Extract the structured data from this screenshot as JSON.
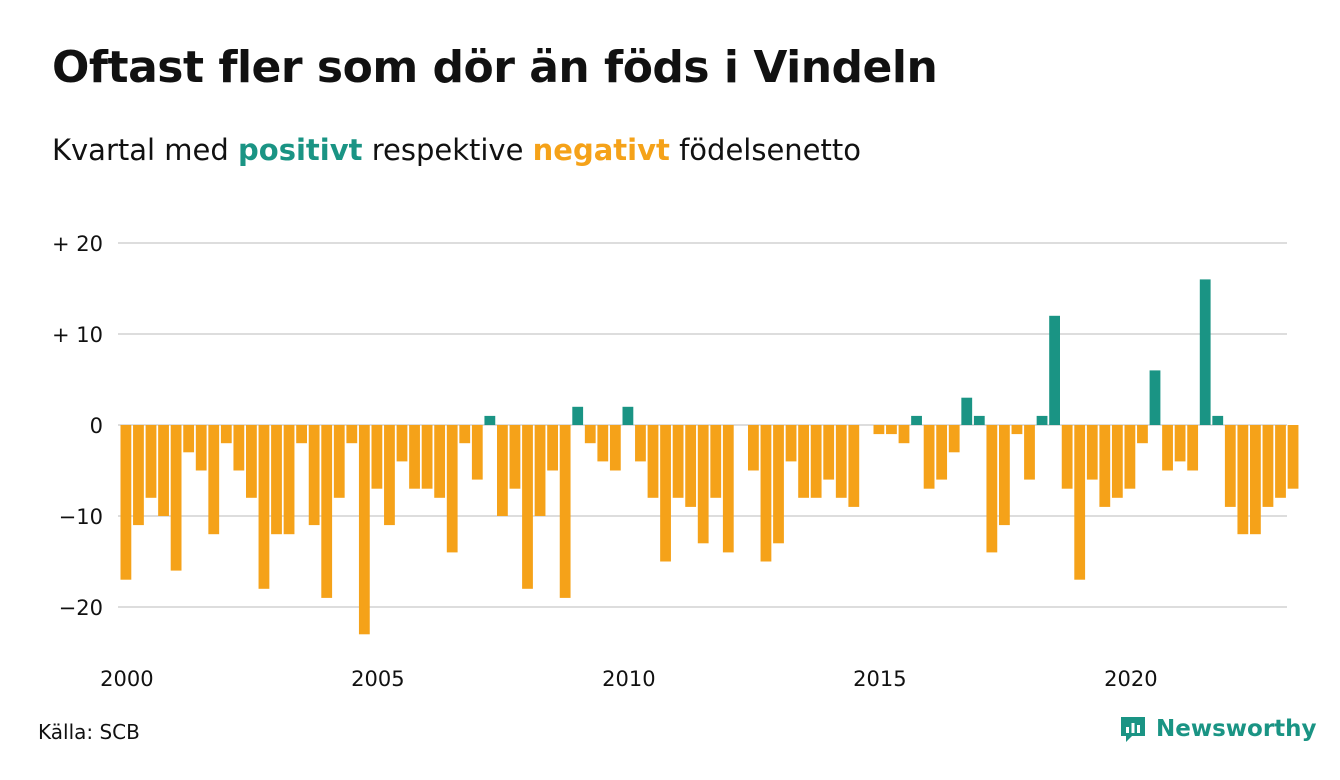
{
  "title": "Oftast fler som dör än föds i Vindeln",
  "subtitle": {
    "prefix": "Kvartal med ",
    "positive_word": "positivt",
    "middle": " respektive ",
    "negative_word": "negativt",
    "suffix": " födelsenetto"
  },
  "source": "Källa: SCB",
  "brand": "Newsworthy",
  "colors": {
    "positive": "#1a9484",
    "negative": "#f5a219",
    "grid": "#dddddd",
    "text": "#111111"
  },
  "chart_data": {
    "type": "bar",
    "title": "Oftast fler som dör än föds i Vindeln",
    "subtitle": "Kvartal med positivt respektive negativt födelsenetto",
    "start_year": 2000,
    "ylim": [
      -25,
      20
    ],
    "yticks": [
      {
        "value": 20,
        "label": "+ 20"
      },
      {
        "value": 10,
        "label": "+ 10"
      },
      {
        "value": 0,
        "label": "0"
      },
      {
        "value": -10,
        "label": "−10"
      },
      {
        "value": -20,
        "label": "−20"
      }
    ],
    "xticks": [
      {
        "year": 2000,
        "label": "2000"
      },
      {
        "year": 2005,
        "label": "2005"
      },
      {
        "year": 2010,
        "label": "2010"
      },
      {
        "year": 2015,
        "label": "2015"
      },
      {
        "year": 2020,
        "label": "2020"
      }
    ],
    "grid": true,
    "values": [
      -17,
      -11,
      -8,
      -10,
      -16,
      -3,
      -5,
      -12,
      -2,
      -5,
      -8,
      -18,
      -12,
      -12,
      -2,
      -11,
      -19,
      -8,
      -2,
      -23,
      -7,
      -11,
      -4,
      -7,
      -7,
      -8,
      -14,
      -2,
      -6,
      1,
      -10,
      -7,
      -18,
      -10,
      -5,
      -19,
      2,
      -2,
      -4,
      -5,
      2,
      -4,
      -8,
      -15,
      -8,
      -9,
      -13,
      -8,
      -14,
      0,
      -5,
      -15,
      -13,
      -4,
      -8,
      -8,
      -6,
      -8,
      -9,
      0,
      -1,
      -1,
      -2,
      1,
      -7,
      -6,
      -3,
      3,
      1,
      -14,
      -11,
      -1,
      -6,
      1,
      12,
      -7,
      -17,
      -6,
      -9,
      -8,
      -7,
      -2,
      6,
      -5,
      -4,
      -5,
      16,
      1,
      -9,
      -12,
      -12,
      -9,
      -8,
      -7
    ]
  }
}
